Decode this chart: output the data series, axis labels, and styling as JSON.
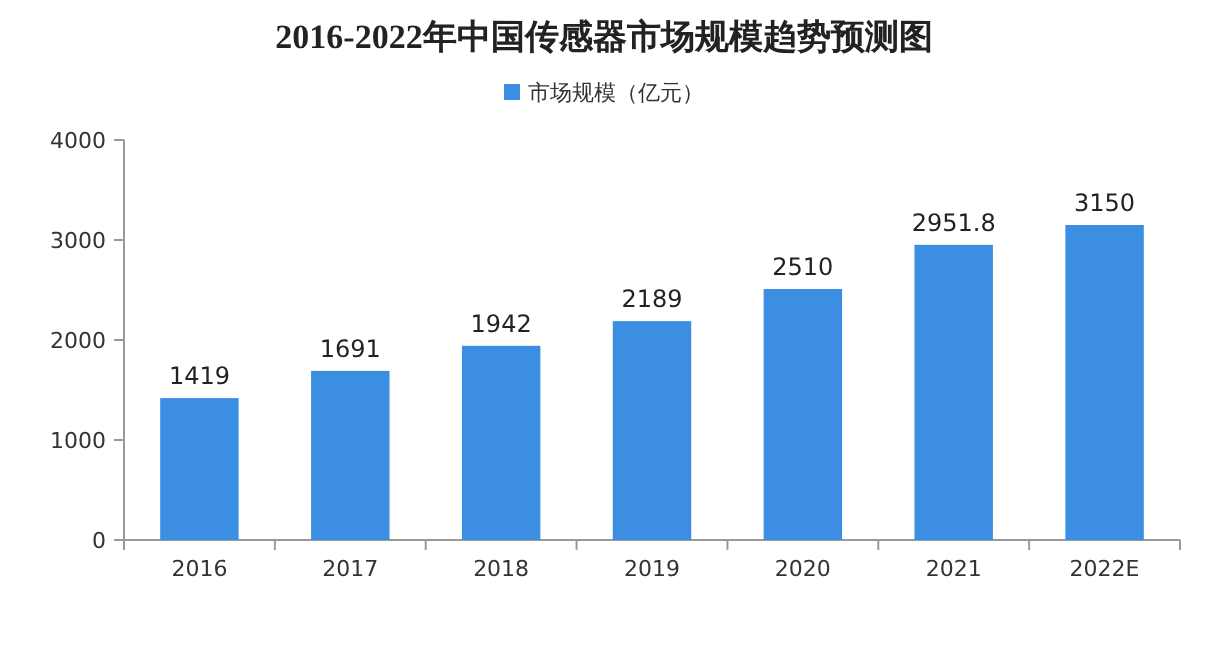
{
  "chart_data": {
    "type": "bar",
    "title": "2016-2022年中国传感器市场规模趋势预测图",
    "categories": [
      "2016",
      "2017",
      "2018",
      "2019",
      "2020",
      "2021",
      "2022E"
    ],
    "series": [
      {
        "name": "市场规模（亿元）",
        "color": "#3c8ee2",
        "values": [
          1419,
          1691,
          1942,
          2189,
          2510,
          2951.8,
          3150
        ]
      }
    ],
    "ylim": [
      0,
      4000
    ],
    "yticks": [
      0,
      1000,
      2000,
      3000,
      4000
    ],
    "legend": "top",
    "data_labels": true
  }
}
